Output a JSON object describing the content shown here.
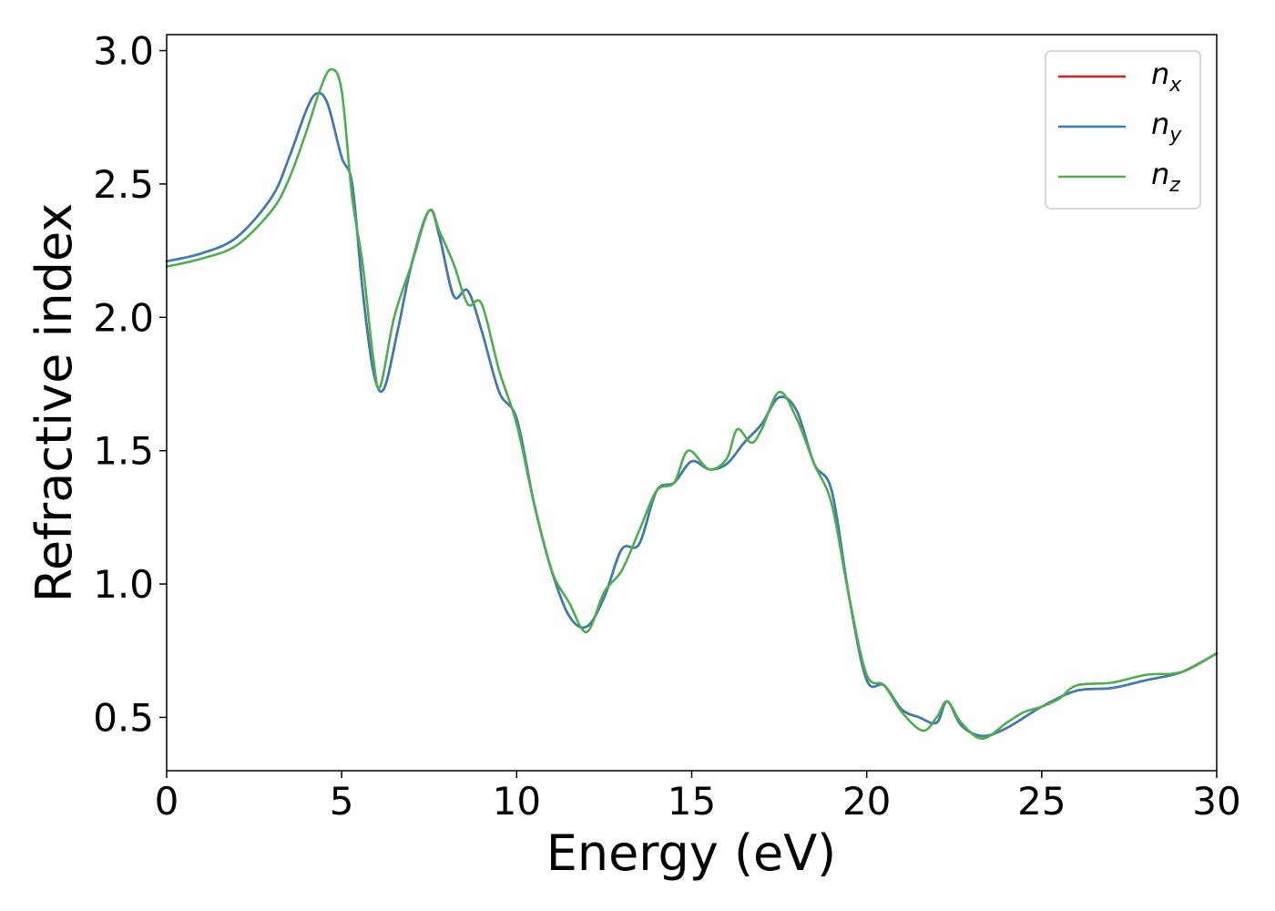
{
  "chart_data": {
    "type": "line",
    "xlabel": "Energy (eV)",
    "ylabel": "Refractive index",
    "xlim": [
      0,
      30
    ],
    "ylim": [
      0.3,
      3.06
    ],
    "xticks": [
      0,
      5,
      10,
      15,
      20,
      25,
      30
    ],
    "yticks": [
      0.5,
      1.0,
      1.5,
      2.0,
      2.5,
      3.0
    ],
    "xtick_labels": [
      "0",
      "5",
      "10",
      "15",
      "20",
      "25",
      "30"
    ],
    "ytick_labels": [
      "0.5",
      "1.0",
      "1.5",
      "2.0",
      "2.5",
      "3.0"
    ],
    "grid": false,
    "legend_position": "top-right",
    "series": [
      {
        "name": "n_x",
        "label_main": "n",
        "label_sub": "x",
        "color": "#e41a1c",
        "x": [
          0,
          1,
          2,
          3,
          3.5,
          4,
          4.3,
          4.6,
          5,
          5.3,
          5.6,
          5.9,
          6.2,
          6.6,
          7,
          7.5,
          7.8,
          8.2,
          8.6,
          9,
          9.5,
          10,
          10.5,
          11,
          11.5,
          12,
          12.5,
          13,
          13.5,
          14,
          14.5,
          15,
          15.5,
          16,
          16.5,
          17,
          17.5,
          18,
          18.5,
          19,
          19.5,
          20,
          20.5,
          21,
          21.5,
          22,
          22.3,
          22.7,
          23.3,
          24,
          25,
          26,
          27,
          28,
          29,
          30
        ],
        "y": [
          2.21,
          2.24,
          2.3,
          2.45,
          2.6,
          2.78,
          2.84,
          2.8,
          2.6,
          2.5,
          2.1,
          1.8,
          1.73,
          1.95,
          2.2,
          2.4,
          2.3,
          2.08,
          2.1,
          1.95,
          1.72,
          1.62,
          1.3,
          1.05,
          0.88,
          0.84,
          0.95,
          1.13,
          1.15,
          1.35,
          1.38,
          1.46,
          1.43,
          1.45,
          1.53,
          1.6,
          1.7,
          1.65,
          1.45,
          1.35,
          0.95,
          0.64,
          0.62,
          0.53,
          0.5,
          0.48,
          0.56,
          0.47,
          0.43,
          0.46,
          0.54,
          0.6,
          0.61,
          0.64,
          0.67,
          0.74
        ]
      },
      {
        "name": "n_y",
        "label_main": "n",
        "label_sub": "y",
        "color": "#377eb8",
        "x": [
          0,
          1,
          2,
          3,
          3.5,
          4,
          4.3,
          4.6,
          5,
          5.3,
          5.6,
          5.9,
          6.2,
          6.6,
          7,
          7.5,
          7.8,
          8.2,
          8.6,
          9,
          9.5,
          10,
          10.5,
          11,
          11.5,
          12,
          12.5,
          13,
          13.5,
          14,
          14.5,
          15,
          15.5,
          16,
          16.5,
          17,
          17.5,
          18,
          18.5,
          19,
          19.5,
          20,
          20.5,
          21,
          21.5,
          22,
          22.3,
          22.7,
          23.3,
          24,
          25,
          26,
          27,
          28,
          29,
          30
        ],
        "y": [
          2.21,
          2.24,
          2.3,
          2.45,
          2.6,
          2.78,
          2.84,
          2.8,
          2.6,
          2.5,
          2.1,
          1.8,
          1.73,
          1.95,
          2.2,
          2.4,
          2.3,
          2.08,
          2.1,
          1.95,
          1.72,
          1.62,
          1.3,
          1.05,
          0.88,
          0.84,
          0.95,
          1.13,
          1.15,
          1.35,
          1.38,
          1.46,
          1.43,
          1.45,
          1.53,
          1.6,
          1.7,
          1.65,
          1.45,
          1.35,
          0.95,
          0.64,
          0.62,
          0.53,
          0.5,
          0.48,
          0.56,
          0.47,
          0.43,
          0.46,
          0.54,
          0.6,
          0.61,
          0.64,
          0.67,
          0.74
        ]
      },
      {
        "name": "n_z",
        "label_main": "n",
        "label_sub": "z",
        "color": "#4daf4a",
        "x": [
          0,
          1,
          2,
          3,
          3.5,
          4,
          4.4,
          4.7,
          5,
          5.3,
          5.6,
          5.9,
          6.1,
          6.5,
          7,
          7.5,
          7.8,
          8.2,
          8.6,
          9,
          9.5,
          10,
          10.5,
          11,
          11.5,
          12,
          12.5,
          13,
          13.5,
          14,
          14.5,
          14.9,
          15.5,
          16,
          16.3,
          16.7,
          17,
          17.5,
          18,
          18.5,
          19,
          19.5,
          20,
          20.5,
          21,
          21.6,
          22,
          22.3,
          22.7,
          23.3,
          24,
          24.5,
          25,
          25.5,
          26,
          27,
          28,
          29,
          30
        ],
        "y": [
          2.19,
          2.22,
          2.27,
          2.4,
          2.52,
          2.7,
          2.86,
          2.93,
          2.85,
          2.45,
          2.2,
          1.85,
          1.74,
          2.0,
          2.2,
          2.4,
          2.32,
          2.2,
          2.05,
          2.05,
          1.8,
          1.6,
          1.3,
          1.05,
          0.93,
          0.82,
          0.97,
          1.05,
          1.2,
          1.35,
          1.38,
          1.5,
          1.43,
          1.47,
          1.58,
          1.53,
          1.58,
          1.72,
          1.62,
          1.45,
          1.3,
          0.95,
          0.66,
          0.62,
          0.52,
          0.45,
          0.5,
          0.56,
          0.48,
          0.42,
          0.48,
          0.52,
          0.54,
          0.57,
          0.62,
          0.63,
          0.66,
          0.67,
          0.74
        ]
      }
    ]
  }
}
